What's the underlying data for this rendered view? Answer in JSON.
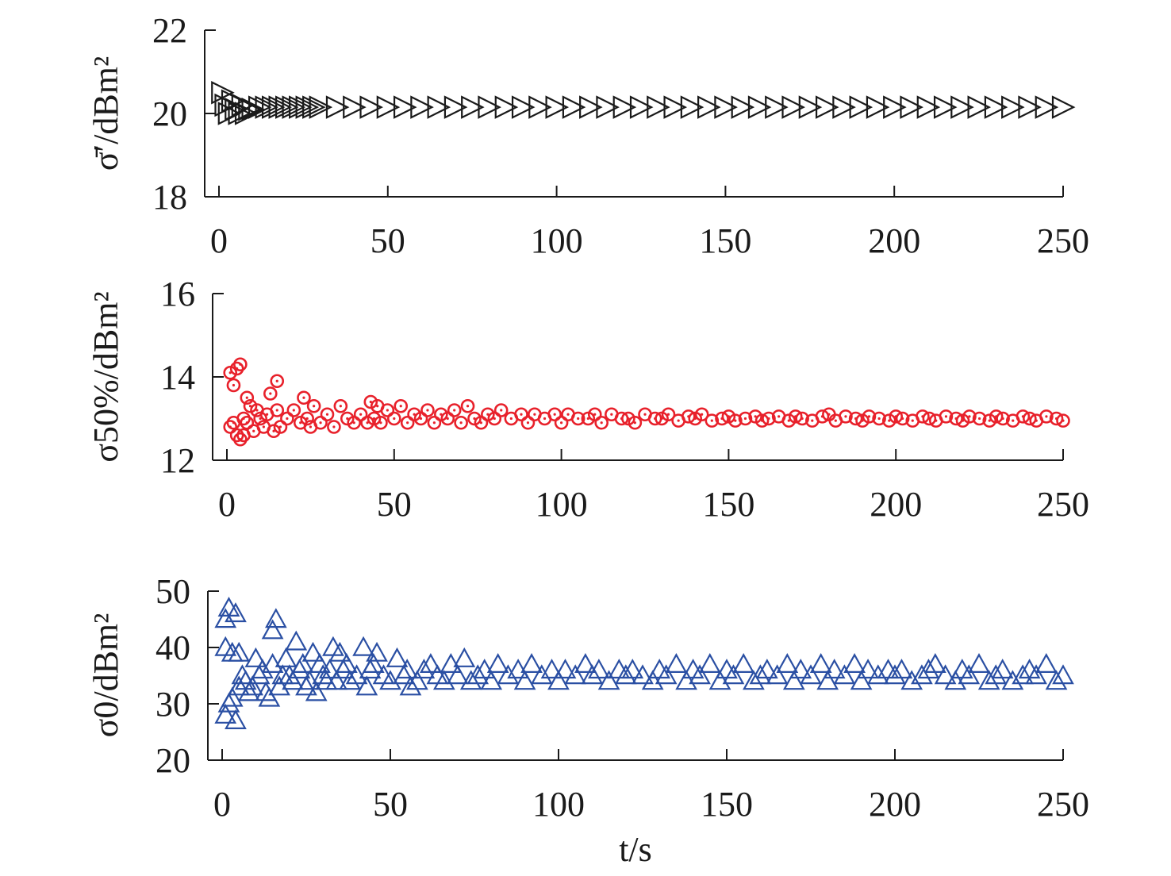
{
  "chart_data": [
    {
      "type": "scatter",
      "marker": "triangle-right",
      "color": "#1a1a1a",
      "ylabel": "σ̄′/dBm²",
      "xlim": [
        0,
        250
      ],
      "ylim": [
        18,
        22
      ],
      "xticks": [
        "0",
        "50",
        "100",
        "150",
        "200",
        "250"
      ],
      "yticks": [
        "18",
        "20",
        "22"
      ],
      "grid": false,
      "series": [
        {
          "values_note": "",
          "x": [
            1,
            2,
            3,
            4,
            5,
            6,
            7,
            8,
            9,
            10,
            12,
            14,
            16,
            18,
            20,
            22,
            24,
            26,
            28,
            30,
            35,
            40,
            45,
            50,
            55,
            60,
            65,
            70,
            75,
            80,
            85,
            90,
            95,
            100,
            105,
            110,
            115,
            120,
            125,
            130,
            135,
            140,
            145,
            150,
            155,
            160,
            165,
            170,
            175,
            180,
            185,
            190,
            195,
            200,
            205,
            210,
            215,
            220,
            225,
            230,
            235,
            240,
            245,
            250
          ],
          "y": [
            20.5,
            20.2,
            20.0,
            20.3,
            20.1,
            20.0,
            20.2,
            20.0,
            20.1,
            20.1,
            20.15,
            20.15,
            20.15,
            20.15,
            20.15,
            20.15,
            20.15,
            20.15,
            20.15,
            20.15,
            20.15,
            20.15,
            20.15,
            20.15,
            20.15,
            20.15,
            20.15,
            20.15,
            20.15,
            20.15,
            20.15,
            20.15,
            20.15,
            20.15,
            20.15,
            20.15,
            20.15,
            20.15,
            20.15,
            20.15,
            20.15,
            20.15,
            20.15,
            20.15,
            20.15,
            20.15,
            20.15,
            20.15,
            20.15,
            20.15,
            20.15,
            20.15,
            20.15,
            20.15,
            20.15,
            20.15,
            20.15,
            20.15,
            20.15,
            20.15,
            20.15,
            20.15,
            20.15,
            20.15
          ]
        }
      ]
    },
    {
      "type": "scatter",
      "marker": "circle-dot",
      "color": "#e8212b",
      "ylabel": "σ50%/dBm²",
      "xlim": [
        0,
        250
      ],
      "ylim": [
        12,
        16
      ],
      "xticks": [
        "0",
        "50",
        "100",
        "150",
        "200",
        "250"
      ],
      "yticks": [
        "12",
        "14",
        "16"
      ],
      "grid": false,
      "series": [
        {
          "x": [
            1,
            1,
            2,
            2,
            3,
            3,
            4,
            4,
            5,
            5,
            6,
            6,
            7,
            8,
            9,
            10,
            11,
            12,
            13,
            14,
            15,
            15,
            16,
            18,
            20,
            22,
            23,
            24,
            25,
            26,
            28,
            30,
            32,
            34,
            36,
            38,
            40,
            42,
            43,
            44,
            45,
            46,
            48,
            50,
            52,
            54,
            56,
            58,
            60,
            62,
            64,
            66,
            68,
            70,
            72,
            74,
            76,
            78,
            80,
            82,
            85,
            88,
            90,
            92,
            95,
            98,
            100,
            102,
            105,
            108,
            110,
            112,
            115,
            118,
            120,
            122,
            125,
            128,
            130,
            132,
            135,
            138,
            140,
            142,
            145,
            148,
            150,
            152,
            155,
            158,
            160,
            162,
            165,
            168,
            170,
            172,
            175,
            178,
            180,
            182,
            185,
            188,
            190,
            192,
            195,
            198,
            200,
            202,
            205,
            208,
            210,
            212,
            215,
            218,
            220,
            222,
            225,
            228,
            230,
            232,
            235,
            238,
            240,
            242,
            245,
            248,
            250
          ],
          "y": [
            12.8,
            14.1,
            13.8,
            12.9,
            14.2,
            12.6,
            14.3,
            12.5,
            13.0,
            12.6,
            13.5,
            12.9,
            13.3,
            12.7,
            13.2,
            13.0,
            12.8,
            13.1,
            13.6,
            12.7,
            13.9,
            13.2,
            12.8,
            13.0,
            13.2,
            12.9,
            13.5,
            13.0,
            12.8,
            13.3,
            12.9,
            13.1,
            12.8,
            13.3,
            13.0,
            12.9,
            13.1,
            12.9,
            13.4,
            13.0,
            13.3,
            12.9,
            13.2,
            13.0,
            13.3,
            12.9,
            13.1,
            13.0,
            13.2,
            12.9,
            13.1,
            13.0,
            13.2,
            12.9,
            13.3,
            13.0,
            12.9,
            13.1,
            13.0,
            13.2,
            13.0,
            13.1,
            12.9,
            13.1,
            13.0,
            13.1,
            12.9,
            13.1,
            13.0,
            13.0,
            13.1,
            12.9,
            13.1,
            13.0,
            13.0,
            12.9,
            13.1,
            13.0,
            13.0,
            13.1,
            12.95,
            13.05,
            13.0,
            13.1,
            12.95,
            13.0,
            13.05,
            12.95,
            13.0,
            13.05,
            12.95,
            13.0,
            13.05,
            12.95,
            13.05,
            13.0,
            12.95,
            13.05,
            13.1,
            12.95,
            13.05,
            13.0,
            12.95,
            13.05,
            13.0,
            12.95,
            13.05,
            13.0,
            12.95,
            13.05,
            13.0,
            12.95,
            13.05,
            13.0,
            12.95,
            13.05,
            13.0,
            12.95,
            13.05,
            13.0,
            12.95,
            13.05,
            13.0,
            12.95,
            13.05,
            13.0,
            12.95
          ]
        }
      ]
    },
    {
      "type": "scatter",
      "marker": "triangle-up",
      "color": "#2a4fa3",
      "ylabel": "σ0/dBm²",
      "xlabel": "t/s",
      "xlim": [
        0,
        250
      ],
      "ylim": [
        20,
        50
      ],
      "xticks": [
        "0",
        "50",
        "100",
        "150",
        "200",
        "250"
      ],
      "yticks": [
        "20",
        "30",
        "40",
        "50"
      ],
      "grid": false,
      "series": [
        {
          "x": [
            1,
            1,
            1,
            2,
            2,
            3,
            3,
            4,
            4,
            5,
            5,
            6,
            7,
            8,
            9,
            10,
            11,
            12,
            13,
            14,
            15,
            15,
            16,
            17,
            18,
            19,
            20,
            21,
            22,
            23,
            24,
            25,
            26,
            27,
            28,
            29,
            30,
            31,
            32,
            33,
            34,
            35,
            36,
            37,
            38,
            40,
            42,
            43,
            44,
            45,
            46,
            48,
            50,
            52,
            54,
            55,
            56,
            58,
            60,
            62,
            64,
            66,
            68,
            70,
            72,
            74,
            76,
            78,
            80,
            82,
            85,
            88,
            90,
            92,
            95,
            98,
            100,
            102,
            105,
            108,
            110,
            112,
            115,
            118,
            120,
            122,
            125,
            128,
            130,
            132,
            135,
            138,
            140,
            142,
            145,
            148,
            150,
            152,
            155,
            158,
            160,
            162,
            165,
            168,
            170,
            172,
            175,
            178,
            180,
            182,
            185,
            188,
            190,
            192,
            195,
            198,
            200,
            202,
            205,
            208,
            210,
            212,
            215,
            218,
            220,
            222,
            225,
            228,
            230,
            232,
            235,
            238,
            240,
            242,
            245,
            248,
            250
          ],
          "y": [
            45,
            28,
            40,
            47,
            30,
            39,
            31,
            46,
            27,
            39,
            33,
            35,
            34,
            32,
            33,
            38,
            35,
            36,
            32,
            31,
            43,
            37,
            45,
            33,
            35,
            38,
            35,
            34,
            41,
            36,
            37,
            33,
            34,
            39,
            32,
            37,
            35,
            34,
            36,
            40,
            34,
            39,
            36,
            37,
            34,
            35,
            40,
            33,
            36,
            37,
            39,
            35,
            34,
            38,
            35,
            36,
            33,
            34,
            36,
            37,
            35,
            34,
            37,
            35,
            38,
            34,
            35,
            36,
            34,
            37,
            35,
            36,
            34,
            37,
            35,
            36,
            34,
            36,
            35,
            37,
            35,
            36,
            34,
            36,
            35,
            36,
            35,
            34,
            36,
            35,
            37,
            34,
            36,
            35,
            37,
            34,
            36,
            35,
            37,
            34,
            35,
            36,
            35,
            37,
            34,
            36,
            35,
            37,
            34,
            36,
            35,
            37,
            34,
            36,
            35,
            36,
            35,
            36,
            34,
            35,
            36,
            37,
            35,
            34,
            36,
            35,
            37,
            34,
            35,
            36,
            34,
            35,
            36,
            35,
            37,
            34,
            35
          ]
        }
      ]
    }
  ]
}
